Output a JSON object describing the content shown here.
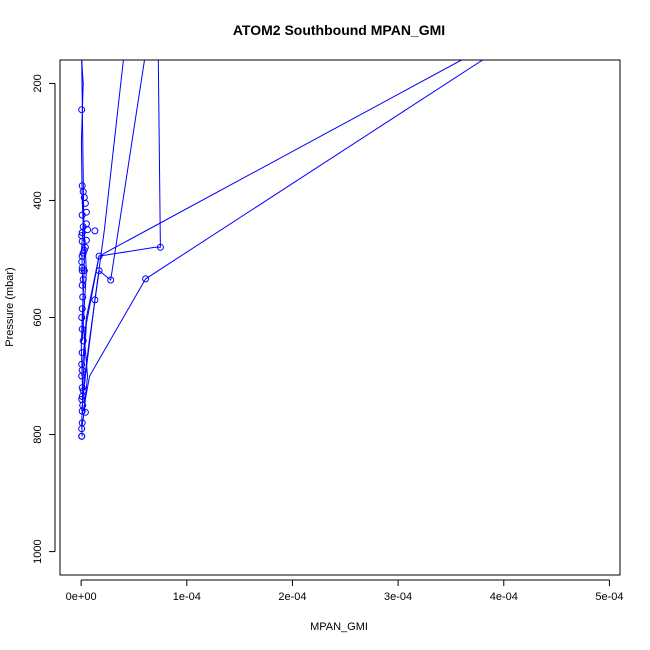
{
  "chart_data": {
    "type": "line",
    "title": "ATOM2 Southbound MPAN_GMI",
    "xlabel": "MPAN_GMI",
    "ylabel": "Pressure (mbar)",
    "xlim": [
      -2e-05,
      0.00051
    ],
    "ylim": [
      1040,
      160
    ],
    "y_reversed": true,
    "x_ticks": [
      0,
      0.0001,
      0.0002,
      0.0003,
      0.0004,
      0.0005
    ],
    "x_tick_labels": [
      "0e+00",
      "1e-04",
      "2e-04",
      "3e-04",
      "4e-04",
      "5e-04"
    ],
    "y_ticks": [
      200,
      400,
      600,
      800,
      1000
    ],
    "y_tick_labels": [
      "200",
      "400",
      "600",
      "800",
      "1000"
    ],
    "series_color": "#0000ff",
    "grid": false,
    "series": [
      {
        "x": [
          1e-06,
          5e-07,
          1.5e-06,
          1e-06,
          2e-07,
          1e-06,
          2e-06,
          1e-06,
          5e-07,
          2e-06,
          1e-06,
          3e-07,
          2e-06,
          5e-07
        ],
        "y": [
          803,
          780,
          740,
          700,
          650,
          600,
          560,
          520,
          480,
          440,
          400,
          300,
          200,
          160
        ]
      },
      {
        "x": [
          5e-07,
          3e-06,
          6e-06,
          1.5e-06,
          3e-06,
          5e-07
        ],
        "y": [
          790,
          760,
          700,
          600,
          500,
          160
        ]
      },
      {
        "x": [
          5e-07,
          4e-06,
          1.3e-05,
          2.2e-05,
          4e-05
        ],
        "y": [
          760,
          700,
          570,
          450,
          160
        ]
      },
      {
        "x": [
          1e-06,
          7e-06,
          1.7e-05,
          2.8e-05,
          6e-05
        ],
        "y": [
          740,
          650,
          520,
          536,
          160
        ]
      },
      {
        "x": [
          5e-07,
          5e-06,
          1.7e-05,
          7e-05,
          7.5e-05,
          7.3e-05
        ],
        "y": [
          700,
          600,
          495,
          480,
          480,
          160
        ]
      },
      {
        "x": [
          2e-06,
          8e-06,
          6.1e-05,
          0.00038
        ],
        "y": [
          760,
          700,
          534,
          160
        ]
      },
      {
        "x": [
          1e-06,
          5e-06,
          1.7e-05,
          0.00036
        ],
        "y": [
          730,
          610,
          495,
          160
        ]
      },
      {
        "x": [
          1e-06,
          5e-06,
          2e-06,
          1e-06
        ],
        "y": [
          640,
          520,
          420,
          390
        ]
      }
    ],
    "markers": {
      "x": [
        5e-07,
        5e-07,
        5e-07,
        1e-06,
        1e-06,
        1.5e-06,
        5e-07,
        1e-06,
        2e-06,
        1e-06,
        5e-07,
        1e-06,
        5e-07,
        1e-06,
        2e-06,
        1e-06,
        5e-07,
        1e-06,
        1.5e-06,
        1e-06,
        2e-06,
        3e-06,
        1e-06,
        5e-07,
        1e-06,
        2e-06,
        3e-06,
        4e-06,
        5e-06,
        6e-06,
        5e-06,
        5e-06,
        4e-06,
        3e-06,
        2e-06,
        1e-06,
        1e-06,
        5e-07,
        1e-06,
        2e-06,
        1e-06,
        5e-07,
        1e-06,
        1.3e-05,
        1.7e-05,
        1.7e-05,
        1.3e-05,
        2.8e-05,
        6.1e-05,
        7.5e-05,
        4e-06
      ],
      "y": [
        803,
        803,
        790,
        780,
        760,
        750,
        740,
        735,
        725,
        720,
        700,
        690,
        680,
        660,
        640,
        620,
        600,
        585,
        565,
        545,
        535,
        520,
        515,
        505,
        495,
        490,
        485,
        480,
        468,
        450,
        440,
        420,
        405,
        395,
        385,
        375,
        470,
        460,
        455,
        445,
        425,
        245,
        520,
        452,
        495,
        520,
        570,
        536,
        534,
        480,
        762
      ]
    }
  }
}
